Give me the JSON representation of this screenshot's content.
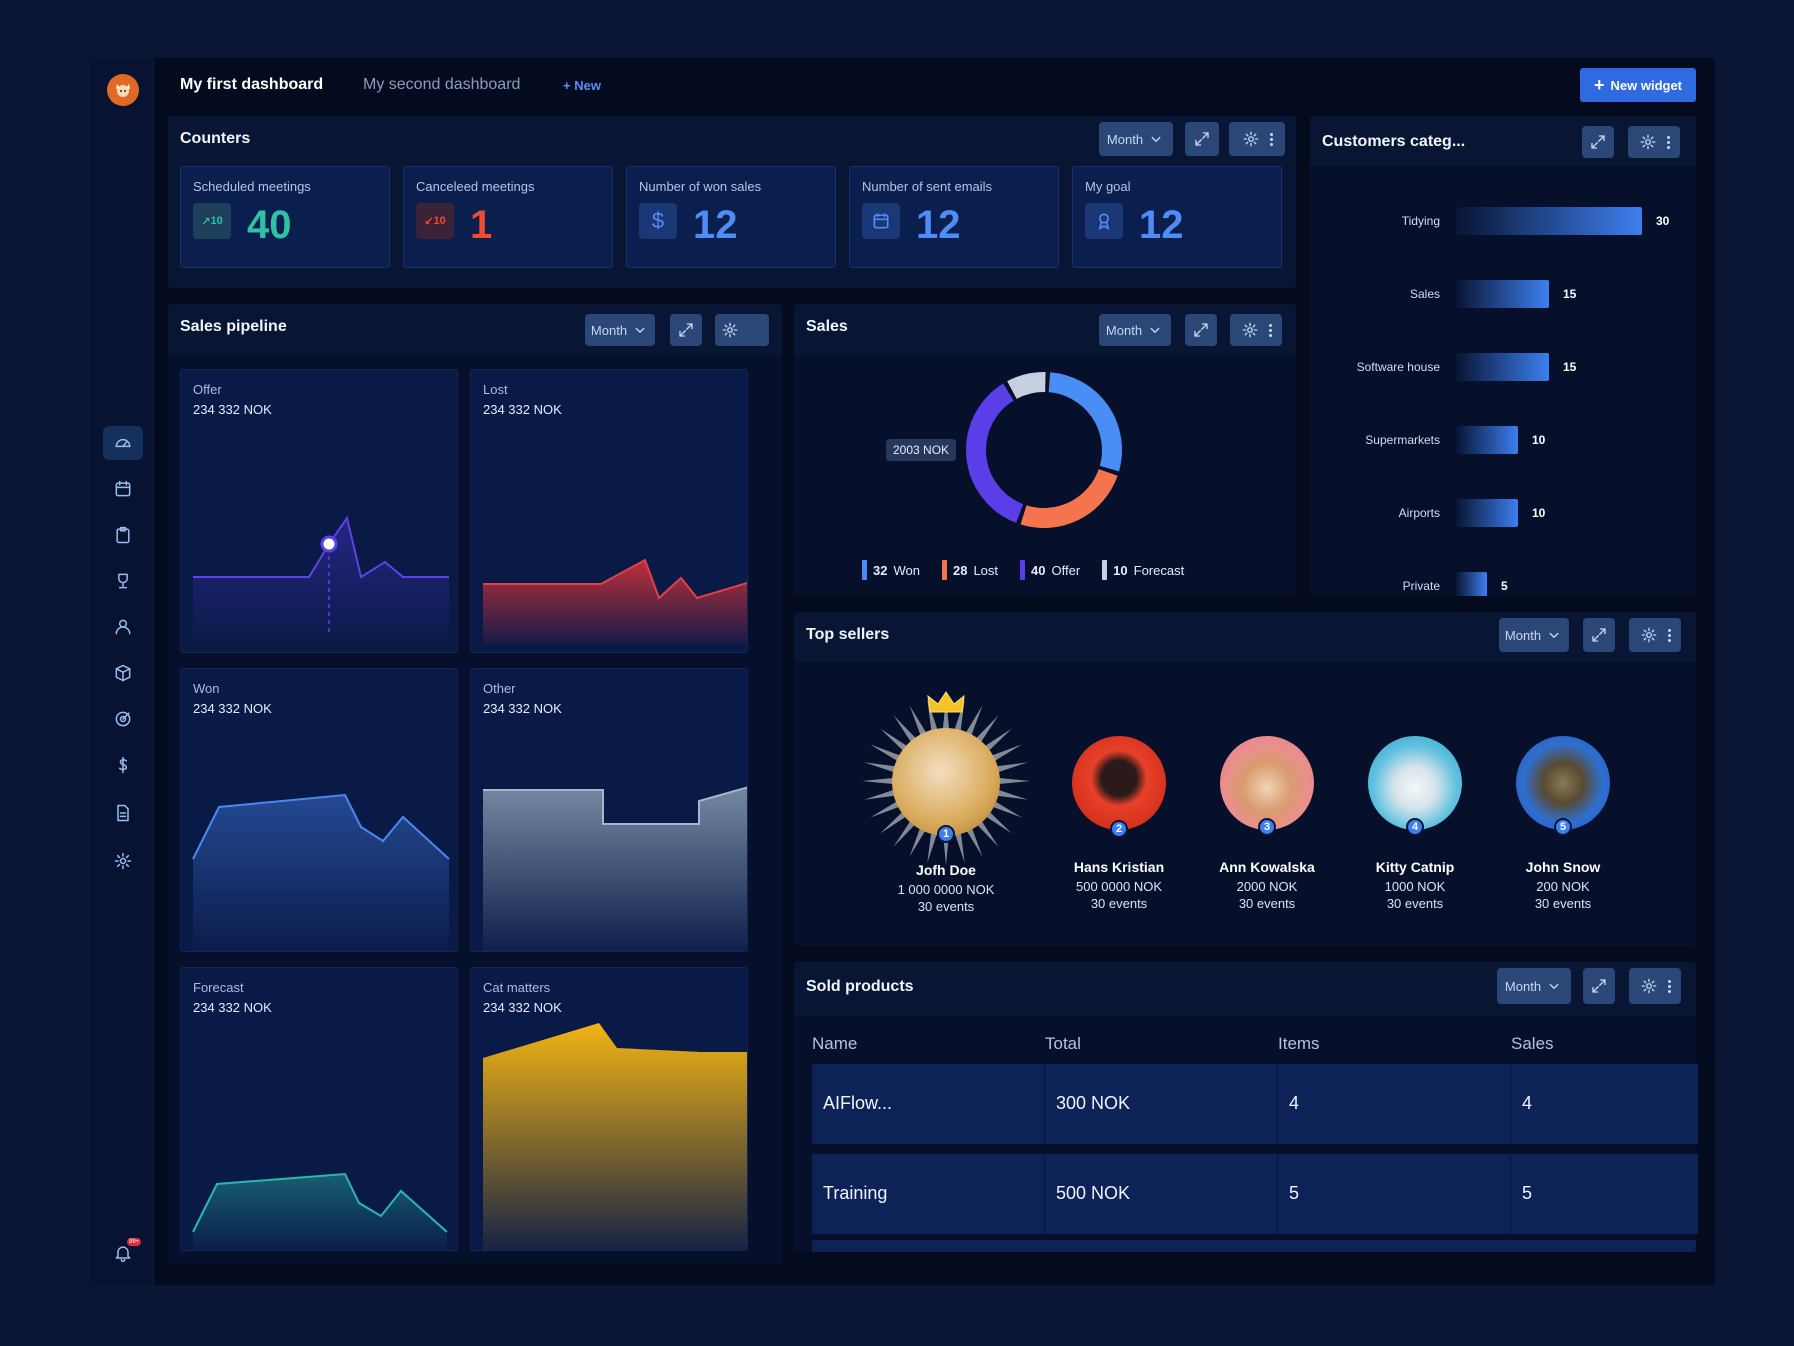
{
  "app": {
    "tabs": [
      {
        "label": "My first dashboard"
      },
      {
        "label": "My second dashboard"
      }
    ],
    "new_tab_label": "+ New",
    "new_widget_label": "New widget",
    "notification_count": "99+"
  },
  "sidebar": {
    "items": [
      {
        "icon": "dashboard-icon",
        "active": true
      },
      {
        "icon": "calendar-icon"
      },
      {
        "icon": "clipboard-icon"
      },
      {
        "icon": "trophy-icon"
      },
      {
        "icon": "user-icon"
      },
      {
        "icon": "box-icon"
      },
      {
        "icon": "target-icon"
      },
      {
        "icon": "dollar-icon"
      },
      {
        "icon": "document-icon"
      },
      {
        "icon": "gear-icon"
      }
    ]
  },
  "period_label": "Month",
  "counters": {
    "title": "Counters",
    "items": [
      {
        "label": "Scheduled meetings",
        "badge": "10",
        "value": "40",
        "color": "#2fc0a6"
      },
      {
        "label": "Canceleed meetings",
        "badge": "10",
        "value": "1",
        "color": "#ef4b33"
      },
      {
        "label": "Number of won sales",
        "badge": "$",
        "value": "12",
        "color": "#4f8cf5"
      },
      {
        "label": "Number of sent emails",
        "badge": "calendar",
        "value": "12",
        "color": "#4f8cf5"
      },
      {
        "label": "My goal",
        "badge": "award",
        "value": "12",
        "color": "#4f8cf5"
      }
    ]
  },
  "customers": {
    "title": "Customers categ...",
    "chart_data": {
      "type": "bar",
      "orientation": "horizontal",
      "categories": [
        "Tidying",
        "Sales",
        "Software house",
        "Supermarkets",
        "Airports",
        "Private"
      ],
      "values": [
        30,
        15,
        15,
        10,
        10,
        5
      ]
    }
  },
  "pipeline": {
    "title": "Sales pipeline",
    "charts": [
      {
        "label": "Offer",
        "amount": "234 332 NOK",
        "color": "#5b43e6"
      },
      {
        "label": "Lost",
        "amount": "234 332 NOK",
        "color": "#d8373d"
      },
      {
        "label": "Won",
        "amount": "234 332 NOK",
        "color": "#4a88f0"
      },
      {
        "label": "Other",
        "amount": "234 332 NOK",
        "color": "#8a9fb7"
      },
      {
        "label": "Forecast",
        "amount": "234 332 NOK",
        "color": "#2cb7ad"
      },
      {
        "label": "Cat matters",
        "amount": "234 332 NOK",
        "color": "#f3b413"
      }
    ]
  },
  "sales": {
    "title": "Sales",
    "tooltip": "2003 NOK",
    "chart_data": {
      "type": "pie",
      "donut": true,
      "categories": [
        "Won",
        "Lost",
        "Offer",
        "Forecast"
      ],
      "values": [
        32,
        28,
        40,
        10
      ],
      "colors": [
        "#4a8df5",
        "#f4744e",
        "#5a3fe8",
        "#c7cfe0"
      ]
    }
  },
  "top_sellers": {
    "title": "Top sellers",
    "sellers": [
      {
        "rank": "1",
        "name": "Jofh Doe",
        "amount": "1 000 0000 NOK",
        "events": "30 events",
        "bg": "#d9a95a"
      },
      {
        "rank": "2",
        "name": "Hans Kristian",
        "amount": "500 0000 NOK",
        "events": "30 events",
        "bg": "#d7301f"
      },
      {
        "rank": "3",
        "name": "Ann Kowalska",
        "amount": "2000 NOK",
        "events": "30 events",
        "bg": "#e8908c"
      },
      {
        "rank": "4",
        "name": "Kitty Catnip",
        "amount": "1000 NOK",
        "events": "30 events",
        "bg": "#4fb6d8"
      },
      {
        "rank": "5",
        "name": "John Snow",
        "amount": "200 NOK",
        "events": "30 events",
        "bg": "#2a72d6"
      }
    ]
  },
  "sold_products": {
    "title": "Sold products",
    "columns": [
      "Name",
      "Total",
      "Items",
      "Sales"
    ],
    "rows": [
      {
        "name": "AIFlow...",
        "total": "300 NOK",
        "items": "4",
        "sales": "4"
      },
      {
        "name": "Training",
        "total": "500 NOK",
        "items": "5",
        "sales": "5"
      }
    ]
  }
}
